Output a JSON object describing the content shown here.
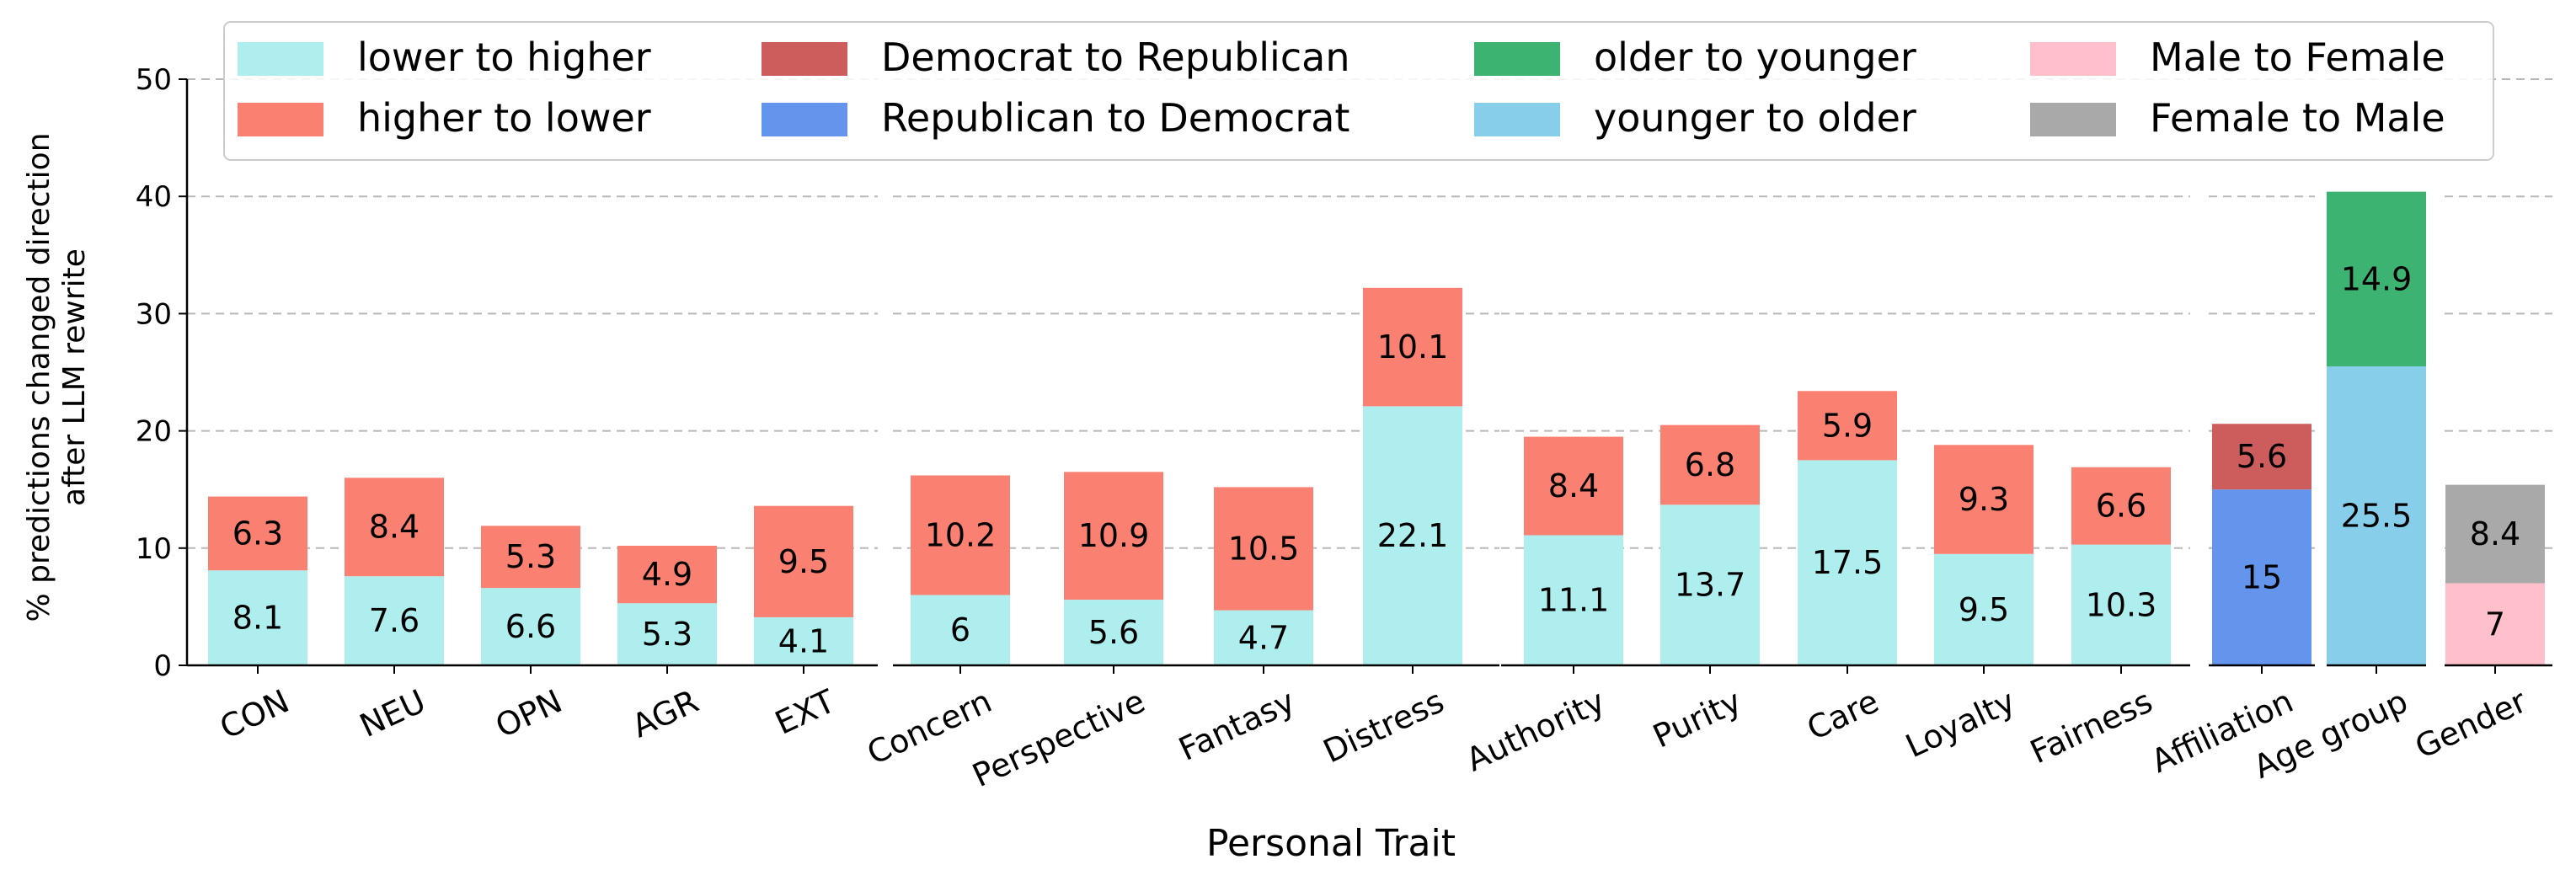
{
  "chart_data": {
    "type": "bar",
    "stacked": true,
    "xlabel": "Personal Trait",
    "ylabel_lines": [
      "% predictions changed direction",
      "after LLM rewrite"
    ],
    "ylim": [
      0,
      50
    ],
    "yticks": [
      0,
      10,
      20,
      30,
      40,
      50
    ],
    "grid": "horizontal dashed",
    "legend_position": "top",
    "legend": [
      {
        "key": "lower_higher",
        "label": "lower to higher",
        "color": "#afeeee"
      },
      {
        "key": "higher_lower",
        "label": "higher to lower",
        "color": "#fa8072"
      },
      {
        "key": "dem_rep",
        "label": "Democrat to Republican",
        "color": "#cd5c5c"
      },
      {
        "key": "rep_dem",
        "label": "Republican to Democrat",
        "color": "#6495ed"
      },
      {
        "key": "older_younger",
        "label": "older to younger",
        "color": "#3cb371"
      },
      {
        "key": "younger_older",
        "label": "younger to older",
        "color": "#87ceeb"
      },
      {
        "key": "male_female",
        "label": "Male to Female",
        "color": "#ffc0cb"
      },
      {
        "key": "female_male",
        "label": "Female to Male",
        "color": "#a9a9a9"
      }
    ],
    "panels": [
      {
        "categories": [
          "CON",
          "NEU",
          "OPN",
          "AGR",
          "EXT"
        ],
        "series": [
          {
            "key": "lower_higher",
            "values": [
              8.1,
              7.6,
              6.6,
              5.3,
              4.1
            ]
          },
          {
            "key": "higher_lower",
            "values": [
              6.3,
              8.4,
              5.3,
              4.9,
              9.5
            ]
          }
        ]
      },
      {
        "categories": [
          "Concern",
          "Perspective",
          "Fantasy",
          "Distress"
        ],
        "series": [
          {
            "key": "lower_higher",
            "values": [
              6,
              5.6,
              4.7,
              22.1
            ]
          },
          {
            "key": "higher_lower",
            "values": [
              10.2,
              10.9,
              10.5,
              10.1
            ]
          }
        ]
      },
      {
        "categories": [
          "Authority",
          "Purity",
          "Care",
          "Loyalty",
          "Fairness"
        ],
        "series": [
          {
            "key": "lower_higher",
            "values": [
              11.1,
              13.7,
              17.5,
              9.5,
              10.3
            ]
          },
          {
            "key": "higher_lower",
            "values": [
              8.4,
              6.8,
              5.9,
              9.3,
              6.6
            ]
          }
        ]
      },
      {
        "categories": [
          "Affiliation"
        ],
        "series": [
          {
            "key": "rep_dem",
            "values": [
              15
            ]
          },
          {
            "key": "dem_rep",
            "values": [
              5.6
            ]
          }
        ]
      },
      {
        "categories": [
          "Age group"
        ],
        "series": [
          {
            "key": "younger_older",
            "values": [
              25.5
            ]
          },
          {
            "key": "older_younger",
            "values": [
              14.9
            ]
          }
        ]
      },
      {
        "categories": [
          "Gender"
        ],
        "series": [
          {
            "key": "male_female",
            "values": [
              7
            ]
          },
          {
            "key": "female_male",
            "values": [
              8.4
            ]
          }
        ]
      }
    ]
  }
}
